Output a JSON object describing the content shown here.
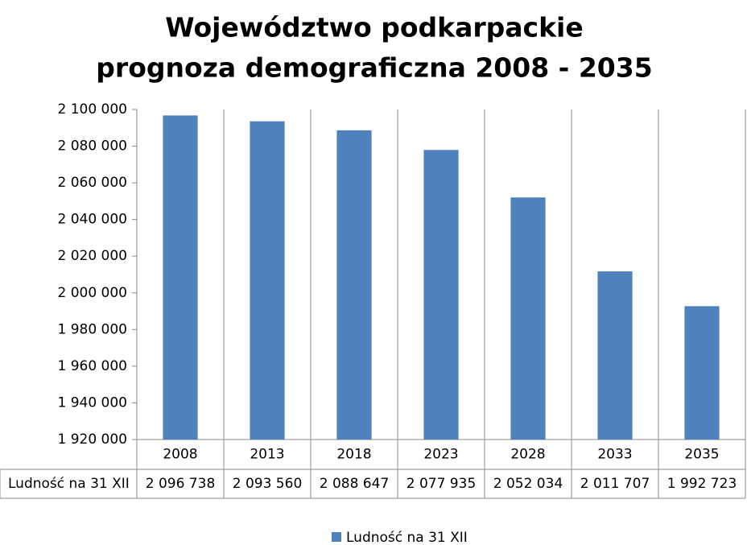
{
  "chart_data": {
    "type": "bar",
    "title": "Województwo podkarpackie",
    "subtitle": "prognoza demograficzna 2008 - 2035",
    "categories": [
      "2008",
      "2013",
      "2018",
      "2023",
      "2028",
      "2033",
      "2035"
    ],
    "series": [
      {
        "name": "Ludność na 31 XII",
        "color": "#4f81bd",
        "values": [
          2096738,
          2093560,
          2088647,
          2077935,
          2052034,
          2011707,
          1992723
        ],
        "value_labels": [
          "2 096 738",
          "2 093 560",
          "2 088 647",
          "2 077 935",
          "2 052 034",
          "2 011 707",
          "1 992 723"
        ]
      }
    ],
    "ylim": [
      1920000,
      2100000
    ],
    "yticks": [
      {
        "value": 1920000,
        "label": "1 920 000"
      },
      {
        "value": 1940000,
        "label": "1 940 000"
      },
      {
        "value": 1960000,
        "label": "1 960 000"
      },
      {
        "value": 1980000,
        "label": "1 980 000"
      },
      {
        "value": 2000000,
        "label": "2 000 000"
      },
      {
        "value": 2020000,
        "label": "2 020 000"
      },
      {
        "value": 2040000,
        "label": "2 040 000"
      },
      {
        "value": 2060000,
        "label": "2 060 000"
      },
      {
        "value": 2080000,
        "label": "2 080 000"
      },
      {
        "value": 2100000,
        "label": "2 100 000"
      }
    ],
    "grid": false,
    "legend": "bottom"
  }
}
